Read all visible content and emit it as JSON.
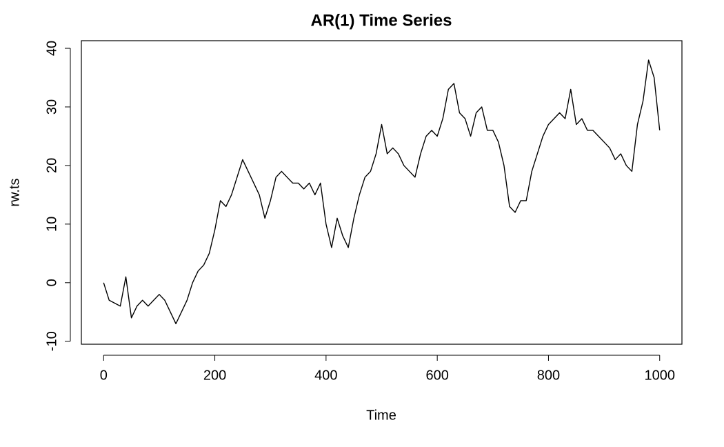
{
  "chart_data": {
    "type": "line",
    "title": "AR(1) Time Series",
    "x_label": "Time",
    "y_label": "rw.ts",
    "x": [
      0,
      10,
      20,
      30,
      40,
      50,
      60,
      70,
      80,
      90,
      100,
      110,
      120,
      130,
      140,
      150,
      160,
      170,
      180,
      190,
      200,
      210,
      220,
      230,
      240,
      250,
      260,
      270,
      280,
      290,
      300,
      310,
      320,
      330,
      340,
      350,
      360,
      370,
      380,
      390,
      400,
      410,
      420,
      430,
      440,
      450,
      460,
      470,
      480,
      490,
      500,
      510,
      520,
      530,
      540,
      550,
      560,
      570,
      580,
      590,
      600,
      610,
      620,
      630,
      640,
      650,
      660,
      670,
      680,
      690,
      700,
      710,
      720,
      730,
      740,
      750,
      760,
      770,
      780,
      790,
      800,
      810,
      820,
      830,
      840,
      850,
      860,
      870,
      880,
      890,
      900,
      910,
      920,
      930,
      940,
      950,
      960,
      970,
      980,
      990,
      1000
    ],
    "values": [
      0,
      -3,
      -3.5,
      -4,
      1,
      -6,
      -4,
      -3,
      -4,
      -3,
      -2,
      -3,
      -5,
      -7,
      -5,
      -3,
      0,
      2,
      3,
      5,
      9,
      14,
      13,
      15,
      18,
      21,
      19,
      17,
      15,
      11,
      14,
      18,
      19,
      18,
      17,
      17,
      16,
      17,
      15,
      17,
      10,
      6,
      11,
      8,
      6,
      11,
      15,
      18,
      19,
      22,
      27,
      22,
      23,
      22,
      20,
      19,
      18,
      22,
      25,
      26,
      25,
      28,
      33,
      34,
      29,
      28,
      25,
      29,
      30,
      26,
      26,
      24,
      20,
      13,
      12,
      14,
      14,
      19,
      22,
      25,
      27,
      28,
      29,
      28,
      33,
      27,
      28,
      26,
      26,
      25,
      24,
      23,
      21,
      22,
      20,
      19,
      27,
      31,
      38,
      35,
      26
    ],
    "color": "#000000",
    "xlim": [
      -40,
      1040
    ],
    "ylim": [
      -10.5,
      41.3
    ],
    "xticks": [
      0,
      200,
      400,
      600,
      800,
      1000
    ],
    "yticks": [
      -10,
      0,
      10,
      20,
      30,
      40
    ],
    "grid": false
  }
}
